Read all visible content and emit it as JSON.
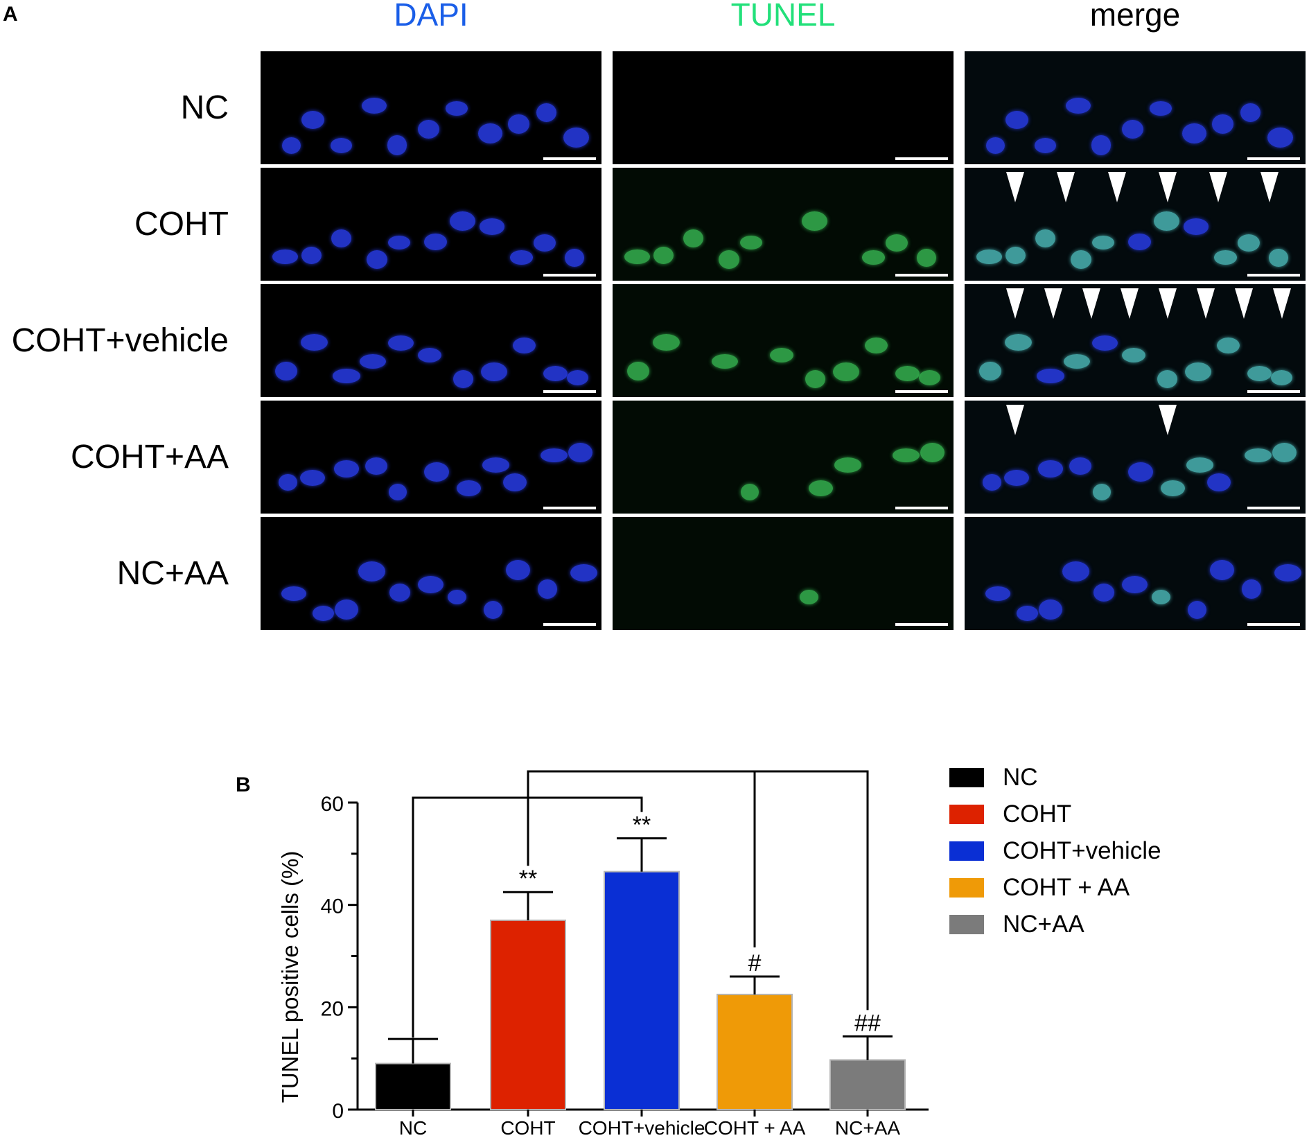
{
  "panel_a_label": "A",
  "panel_b_label": "B",
  "columns": [
    {
      "label": "DAPI",
      "color": "#1a5ee8"
    },
    {
      "label": "TUNEL",
      "color": "#22e07a"
    },
    {
      "label": "merge",
      "color": "#000000"
    }
  ],
  "rows": [
    {
      "label": "NC",
      "tunel_level": 0.0,
      "arrowheads": 0
    },
    {
      "label": "COHT",
      "tunel_level": 0.8,
      "arrowheads": 6
    },
    {
      "label": "COHT+vehicle",
      "tunel_level": 0.7,
      "arrowheads": 8
    },
    {
      "label": "COHT+AA",
      "tunel_level": 0.25,
      "arrowheads": 2
    },
    {
      "label": "NC+AA",
      "tunel_level": 0.05,
      "arrowheads": 0
    }
  ],
  "chart_data": {
    "type": "bar",
    "categories": [
      "NC",
      "COHT",
      "COHT+vehicle",
      "COHT + AA",
      "NC+AA"
    ],
    "values": [
      9,
      37,
      46.5,
      22.5,
      9.7
    ],
    "error_upper": [
      13.8,
      42.5,
      53,
      26,
      14.3
    ],
    "colors": [
      "#000000",
      "#dd2200",
      "#0a2fd4",
      "#ef9a07",
      "#7b7b7b"
    ],
    "ylabel": "TUNEL positive cells (%)",
    "ylim": [
      0,
      60
    ],
    "yticks": [
      0,
      20,
      40,
      60
    ],
    "significance": [
      "",
      "**",
      "**",
      "#",
      "##"
    ],
    "legend": {
      "placement": "right",
      "entries": [
        "NC",
        "COHT",
        "COHT+vehicle",
        "COHT + AA",
        "NC+AA"
      ]
    }
  }
}
